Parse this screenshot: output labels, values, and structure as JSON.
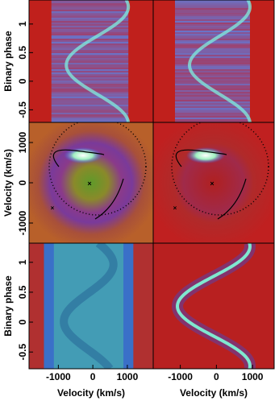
{
  "chart_data": [
    {
      "type": "trailed-spectrum",
      "ylabel": "Binary phase",
      "ylim": [
        -0.72,
        1.42
      ],
      "yticks": [
        -0.5,
        0,
        0.5,
        1
      ],
      "xlim": [
        -1850,
        1750
      ]
    },
    {
      "type": "trailed-spectrum",
      "ylim": [
        -0.72,
        1.42
      ],
      "xlim": [
        -1750,
        1600
      ]
    },
    {
      "type": "doppler-map",
      "ylabel": "Velocity (km/s)",
      "ylim": [
        -1500,
        1500
      ],
      "yticks": [
        -1000,
        0,
        1000
      ],
      "xlim": [
        -1850,
        1750
      ]
    },
    {
      "type": "doppler-map",
      "ylim": [
        -1500,
        1500
      ],
      "xlim": [
        -1750,
        1600
      ]
    },
    {
      "type": "model-spectrum",
      "ylabel": "Binary phase",
      "xlabel": "Velocity (km/s)",
      "ylim": [
        -0.78,
        1.32
      ],
      "yticks": [
        -0.5,
        0,
        0.5,
        1
      ],
      "xlim": [
        -1850,
        1750
      ],
      "xticks": [
        -1000,
        0,
        1000
      ]
    },
    {
      "type": "model-wave",
      "xlabel": "Velocity (km/s)",
      "ylim": [
        -0.78,
        1.32
      ],
      "xlim": [
        -1750,
        1600
      ],
      "xticks": [
        -1000,
        0,
        1000
      ]
    }
  ]
}
